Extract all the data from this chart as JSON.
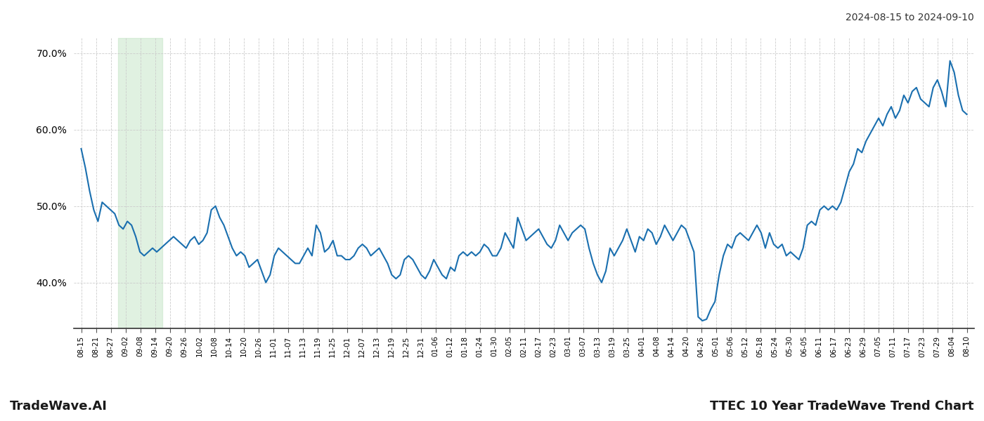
{
  "title_right": "2024-08-15 to 2024-09-10",
  "footer_left": "TradeWave.AI",
  "footer_right": "TTEC 10 Year TradeWave Trend Chart",
  "line_color": "#1a6faf",
  "line_width": 1.5,
  "shade_color": "#c8e6c9",
  "shade_alpha": 0.55,
  "background_color": "#ffffff",
  "grid_color": "#cccccc",
  "ylim": [
    34,
    72
  ],
  "yticks": [
    40.0,
    50.0,
    60.0,
    70.0
  ],
  "x_labels": [
    "08-15",
    "08-21",
    "08-27",
    "09-02",
    "09-08",
    "09-14",
    "09-20",
    "09-26",
    "10-02",
    "10-08",
    "10-14",
    "10-20",
    "10-26",
    "11-01",
    "11-07",
    "11-13",
    "11-19",
    "11-25",
    "12-01",
    "12-07",
    "12-13",
    "12-19",
    "12-25",
    "12-31",
    "01-06",
    "01-12",
    "01-18",
    "01-24",
    "01-30",
    "02-05",
    "02-11",
    "02-17",
    "02-23",
    "03-01",
    "03-07",
    "03-13",
    "03-19",
    "03-25",
    "04-01",
    "04-08",
    "04-14",
    "04-20",
    "04-26",
    "05-01",
    "05-06",
    "05-12",
    "05-18",
    "05-24",
    "05-30",
    "06-05",
    "06-11",
    "06-17",
    "06-23",
    "06-29",
    "07-05",
    "07-11",
    "07-17",
    "07-23",
    "07-29",
    "08-04",
    "08-10"
  ],
  "shade_x_start_label": "09-02",
  "shade_x_end_label": "09-14",
  "values": [
    57.5,
    55.0,
    52.0,
    49.5,
    48.0,
    50.5,
    50.0,
    49.5,
    49.0,
    47.5,
    47.0,
    48.0,
    47.5,
    46.0,
    44.0,
    43.5,
    44.0,
    44.5,
    44.0,
    44.5,
    45.0,
    45.5,
    46.0,
    45.5,
    45.0,
    44.5,
    45.5,
    46.0,
    45.0,
    45.5,
    46.5,
    49.5,
    50.0,
    48.5,
    47.5,
    46.0,
    44.5,
    43.5,
    44.0,
    43.5,
    42.0,
    42.5,
    43.0,
    41.5,
    40.0,
    41.0,
    43.5,
    44.5,
    44.0,
    43.5,
    43.0,
    42.5,
    42.5,
    43.5,
    44.5,
    43.5,
    47.5,
    46.5,
    44.0,
    44.5,
    45.5,
    43.5,
    43.5,
    43.0,
    43.0,
    43.5,
    44.5,
    45.0,
    44.5,
    43.5,
    44.0,
    44.5,
    43.5,
    42.5,
    41.0,
    40.5,
    41.0,
    43.0,
    43.5,
    43.0,
    42.0,
    41.0,
    40.5,
    41.5,
    43.0,
    42.0,
    41.0,
    40.5,
    42.0,
    41.5,
    43.5,
    44.0,
    43.5,
    44.0,
    43.5,
    44.0,
    45.0,
    44.5,
    43.5,
    43.5,
    44.5,
    46.5,
    45.5,
    44.5,
    48.5,
    47.0,
    45.5,
    46.0,
    46.5,
    47.0,
    46.0,
    45.0,
    44.5,
    45.5,
    47.5,
    46.5,
    45.5,
    46.5,
    47.0,
    47.5,
    47.0,
    44.5,
    42.5,
    41.0,
    40.0,
    41.5,
    44.5,
    43.5,
    44.5,
    45.5,
    47.0,
    45.5,
    44.0,
    46.0,
    45.5,
    47.0,
    46.5,
    45.0,
    46.0,
    47.5,
    46.5,
    45.5,
    46.5,
    47.5,
    47.0,
    45.5,
    44.0,
    35.5,
    35.0,
    35.2,
    36.5,
    37.5,
    41.0,
    43.5,
    45.0,
    44.5,
    46.0,
    46.5,
    46.0,
    45.5,
    46.5,
    47.5,
    46.5,
    44.5,
    46.5,
    45.0,
    44.5,
    45.0,
    43.5,
    44.0,
    43.5,
    43.0,
    44.5,
    47.5,
    48.0,
    47.5,
    49.5,
    50.0,
    49.5,
    50.0,
    49.5,
    50.5,
    52.5,
    54.5,
    55.5,
    57.5,
    57.0,
    58.5,
    59.5,
    60.5,
    61.5,
    60.5,
    62.0,
    63.0,
    61.5,
    62.5,
    64.5,
    63.5,
    65.0,
    65.5,
    64.0,
    63.5,
    63.0,
    65.5,
    66.5,
    65.0,
    63.0,
    69.0,
    67.5,
    64.5,
    62.5,
    62.0
  ]
}
